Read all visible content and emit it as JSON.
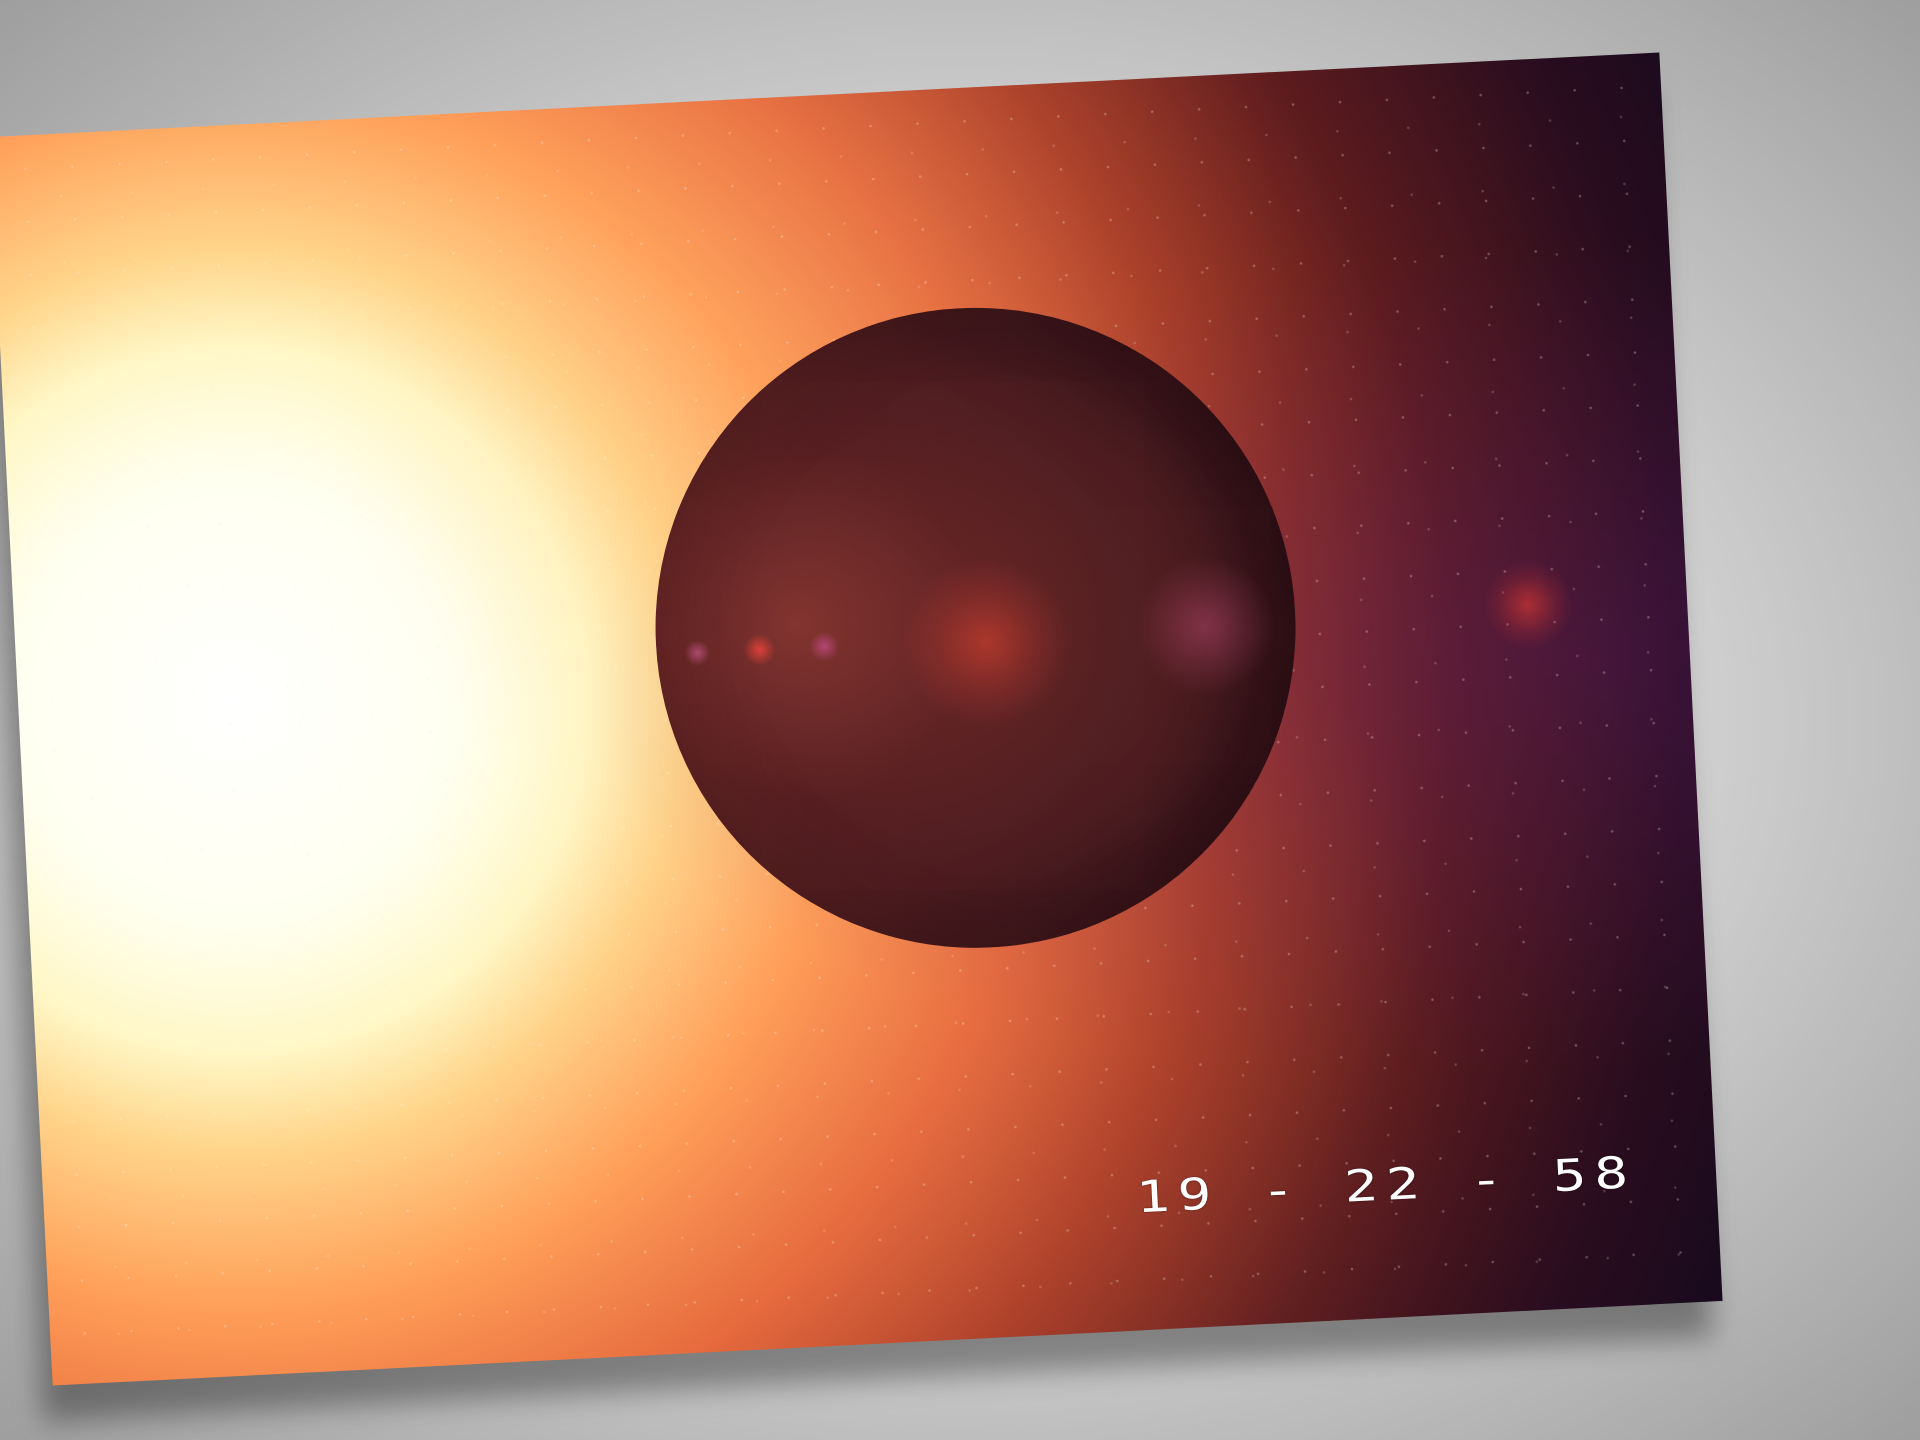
{
  "scene": {
    "timestamp": "19 - 22 - 58",
    "sun_color": "#ffffff",
    "corona_color": "#e4673b",
    "planet_color": "#4b1c20",
    "space_color": "#180a1e",
    "background_color": "#d0d0d0"
  }
}
